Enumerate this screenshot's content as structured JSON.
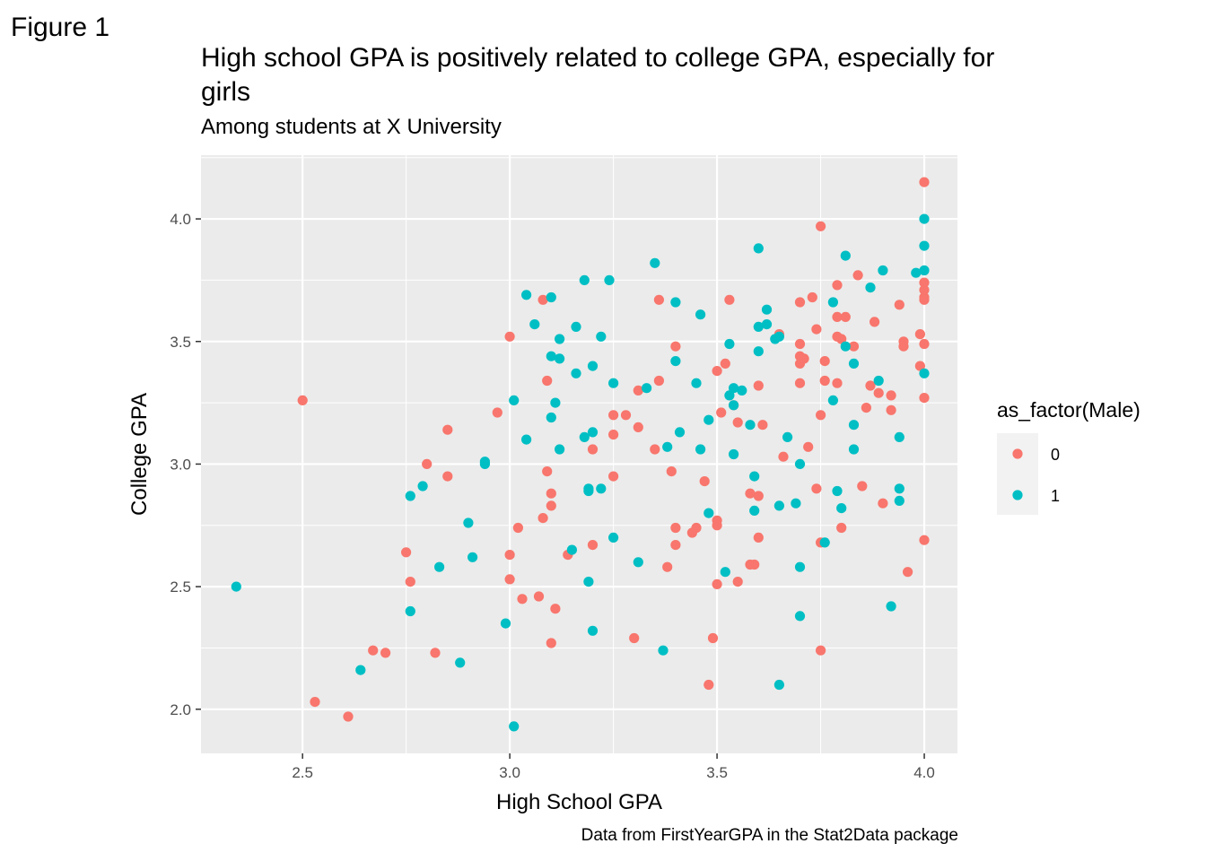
{
  "figure_label": "Figure 1",
  "chart_data": {
    "type": "scatter",
    "title": "High school GPA is positively related to college GPA, especially for girls",
    "subtitle": "Among students at X University",
    "caption": "Data from FirstYearGPA in the Stat2Data package",
    "xlabel": "High School GPA",
    "ylabel": "College GPA",
    "xlim": [
      2.255,
      4.08
    ],
    "ylim": [
      1.82,
      4.26
    ],
    "x_ticks": [
      "2.5",
      "3.0",
      "3.5",
      "4.0"
    ],
    "y_ticks": [
      "2.0",
      "2.5",
      "3.0",
      "3.5",
      "4.0"
    ],
    "grid": true,
    "legend": {
      "title": "as_factor(Male)",
      "position": "right",
      "entries": [
        "0",
        "1"
      ]
    },
    "colors": {
      "0": "#F8766D",
      "1": "#00BFC4",
      "panel": "#EBEBEB",
      "grid": "#FFFFFF"
    },
    "series": [
      {
        "name": "0",
        "points": [
          [
            2.5,
            3.26
          ],
          [
            2.53,
            2.03
          ],
          [
            2.61,
            1.97
          ],
          [
            2.67,
            2.24
          ],
          [
            2.7,
            2.23
          ],
          [
            2.75,
            2.64
          ],
          [
            2.76,
            2.52
          ],
          [
            2.8,
            3.0
          ],
          [
            2.82,
            2.23
          ],
          [
            2.85,
            3.14
          ],
          [
            2.85,
            2.95
          ],
          [
            2.97,
            3.21
          ],
          [
            3.0,
            3.52
          ],
          [
            3.0,
            2.63
          ],
          [
            3.0,
            2.53
          ],
          [
            3.02,
            2.74
          ],
          [
            3.03,
            2.45
          ],
          [
            3.07,
            2.46
          ],
          [
            3.08,
            3.67
          ],
          [
            3.08,
            2.78
          ],
          [
            3.09,
            3.34
          ],
          [
            3.09,
            2.97
          ],
          [
            3.1,
            2.88
          ],
          [
            3.1,
            2.83
          ],
          [
            3.1,
            2.27
          ],
          [
            3.11,
            2.41
          ],
          [
            3.14,
            2.63
          ],
          [
            3.2,
            3.06
          ],
          [
            3.2,
            2.67
          ],
          [
            3.25,
            3.2
          ],
          [
            3.25,
            3.12
          ],
          [
            3.25,
            2.95
          ],
          [
            3.28,
            3.2
          ],
          [
            3.3,
            2.29
          ],
          [
            3.31,
            3.15
          ],
          [
            3.31,
            3.3
          ],
          [
            3.35,
            3.06
          ],
          [
            3.36,
            3.67
          ],
          [
            3.36,
            3.34
          ],
          [
            3.38,
            2.58
          ],
          [
            3.39,
            2.97
          ],
          [
            3.4,
            3.48
          ],
          [
            3.4,
            2.74
          ],
          [
            3.4,
            2.67
          ],
          [
            3.44,
            2.72
          ],
          [
            3.45,
            2.74
          ],
          [
            3.47,
            2.93
          ],
          [
            3.48,
            2.1
          ],
          [
            3.49,
            2.29
          ],
          [
            3.5,
            3.38
          ],
          [
            3.5,
            2.77
          ],
          [
            3.5,
            2.75
          ],
          [
            3.5,
            2.51
          ],
          [
            3.51,
            3.21
          ],
          [
            3.52,
            3.41
          ],
          [
            3.53,
            3.67
          ],
          [
            3.54,
            3.24
          ],
          [
            3.55,
            3.17
          ],
          [
            3.55,
            2.52
          ],
          [
            3.58,
            2.88
          ],
          [
            3.58,
            2.59
          ],
          [
            3.59,
            2.59
          ],
          [
            3.6,
            3.32
          ],
          [
            3.6,
            2.87
          ],
          [
            3.6,
            2.7
          ],
          [
            3.61,
            3.16
          ],
          [
            3.65,
            3.53
          ],
          [
            3.66,
            3.03
          ],
          [
            3.7,
            3.66
          ],
          [
            3.7,
            3.49
          ],
          [
            3.7,
            3.44
          ],
          [
            3.7,
            3.41
          ],
          [
            3.7,
            3.33
          ],
          [
            3.71,
            3.43
          ],
          [
            3.72,
            3.07
          ],
          [
            3.73,
            3.68
          ],
          [
            3.74,
            3.55
          ],
          [
            3.74,
            2.9
          ],
          [
            3.75,
            3.97
          ],
          [
            3.75,
            3.2
          ],
          [
            3.75,
            2.68
          ],
          [
            3.75,
            2.24
          ],
          [
            3.76,
            3.42
          ],
          [
            3.76,
            3.34
          ],
          [
            3.79,
            3.73
          ],
          [
            3.79,
            3.6
          ],
          [
            3.79,
            3.52
          ],
          [
            3.79,
            3.33
          ],
          [
            3.8,
            3.51
          ],
          [
            3.8,
            2.74
          ],
          [
            3.81,
            3.6
          ],
          [
            3.83,
            3.48
          ],
          [
            3.84,
            3.77
          ],
          [
            3.85,
            2.91
          ],
          [
            3.86,
            3.23
          ],
          [
            3.87,
            3.32
          ],
          [
            3.88,
            3.58
          ],
          [
            3.89,
            3.29
          ],
          [
            3.9,
            2.84
          ],
          [
            3.92,
            3.28
          ],
          [
            3.92,
            3.22
          ],
          [
            3.94,
            3.65
          ],
          [
            3.95,
            3.5
          ],
          [
            3.95,
            3.48
          ],
          [
            3.96,
            2.56
          ],
          [
            3.99,
            3.53
          ],
          [
            3.99,
            3.4
          ],
          [
            4.0,
            4.15
          ],
          [
            4.0,
            3.74
          ],
          [
            4.0,
            3.71
          ],
          [
            4.0,
            3.68
          ],
          [
            4.0,
            3.67
          ],
          [
            4.0,
            3.49
          ],
          [
            4.0,
            3.27
          ],
          [
            4.0,
            2.69
          ]
        ]
      },
      {
        "name": "1",
        "points": [
          [
            2.34,
            2.5
          ],
          [
            2.64,
            2.16
          ],
          [
            2.76,
            2.87
          ],
          [
            2.76,
            2.4
          ],
          [
            2.79,
            2.91
          ],
          [
            2.83,
            2.58
          ],
          [
            2.88,
            2.19
          ],
          [
            2.9,
            2.76
          ],
          [
            2.91,
            2.62
          ],
          [
            2.94,
            3.01
          ],
          [
            2.94,
            3.0
          ],
          [
            2.99,
            2.35
          ],
          [
            3.01,
            3.26
          ],
          [
            3.01,
            1.93
          ],
          [
            3.04,
            3.69
          ],
          [
            3.04,
            3.1
          ],
          [
            3.06,
            3.57
          ],
          [
            3.1,
            3.68
          ],
          [
            3.1,
            3.44
          ],
          [
            3.1,
            3.19
          ],
          [
            3.11,
            3.25
          ],
          [
            3.12,
            3.51
          ],
          [
            3.12,
            3.43
          ],
          [
            3.12,
            3.06
          ],
          [
            3.15,
            2.65
          ],
          [
            3.16,
            3.56
          ],
          [
            3.16,
            3.37
          ],
          [
            3.18,
            3.75
          ],
          [
            3.18,
            3.11
          ],
          [
            3.19,
            2.9
          ],
          [
            3.19,
            2.89
          ],
          [
            3.19,
            2.52
          ],
          [
            3.2,
            3.4
          ],
          [
            3.2,
            3.13
          ],
          [
            3.2,
            2.32
          ],
          [
            3.22,
            3.52
          ],
          [
            3.22,
            2.9
          ],
          [
            3.24,
            3.75
          ],
          [
            3.25,
            3.33
          ],
          [
            3.25,
            2.7
          ],
          [
            3.31,
            2.6
          ],
          [
            3.33,
            3.31
          ],
          [
            3.35,
            3.82
          ],
          [
            3.37,
            2.24
          ],
          [
            3.38,
            3.07
          ],
          [
            3.4,
            3.66
          ],
          [
            3.4,
            3.42
          ],
          [
            3.41,
            3.13
          ],
          [
            3.45,
            3.33
          ],
          [
            3.46,
            3.61
          ],
          [
            3.46,
            3.06
          ],
          [
            3.48,
            3.18
          ],
          [
            3.48,
            2.8
          ],
          [
            3.52,
            2.56
          ],
          [
            3.53,
            3.49
          ],
          [
            3.53,
            3.28
          ],
          [
            3.54,
            3.31
          ],
          [
            3.54,
            3.24
          ],
          [
            3.54,
            3.04
          ],
          [
            3.56,
            3.3
          ],
          [
            3.58,
            3.16
          ],
          [
            3.59,
            2.95
          ],
          [
            3.59,
            2.81
          ],
          [
            3.6,
            3.88
          ],
          [
            3.6,
            3.56
          ],
          [
            3.6,
            3.46
          ],
          [
            3.62,
            3.63
          ],
          [
            3.62,
            3.57
          ],
          [
            3.64,
            3.51
          ],
          [
            3.65,
            3.52
          ],
          [
            3.65,
            2.83
          ],
          [
            3.65,
            2.1
          ],
          [
            3.67,
            3.11
          ],
          [
            3.69,
            2.84
          ],
          [
            3.7,
            3.0
          ],
          [
            3.7,
            2.58
          ],
          [
            3.7,
            2.38
          ],
          [
            3.76,
            2.68
          ],
          [
            3.78,
            3.66
          ],
          [
            3.78,
            3.26
          ],
          [
            3.79,
            2.89
          ],
          [
            3.8,
            2.82
          ],
          [
            3.81,
            3.85
          ],
          [
            3.81,
            3.48
          ],
          [
            3.83,
            3.41
          ],
          [
            3.83,
            3.16
          ],
          [
            3.83,
            3.06
          ],
          [
            3.87,
            3.72
          ],
          [
            3.89,
            3.34
          ],
          [
            3.9,
            3.79
          ],
          [
            3.92,
            2.42
          ],
          [
            3.94,
            3.11
          ],
          [
            3.94,
            2.9
          ],
          [
            3.94,
            2.85
          ],
          [
            3.98,
            3.78
          ],
          [
            4.0,
            4.0
          ],
          [
            4.0,
            3.89
          ],
          [
            4.0,
            3.79
          ],
          [
            4.0,
            3.37
          ]
        ]
      }
    ]
  }
}
